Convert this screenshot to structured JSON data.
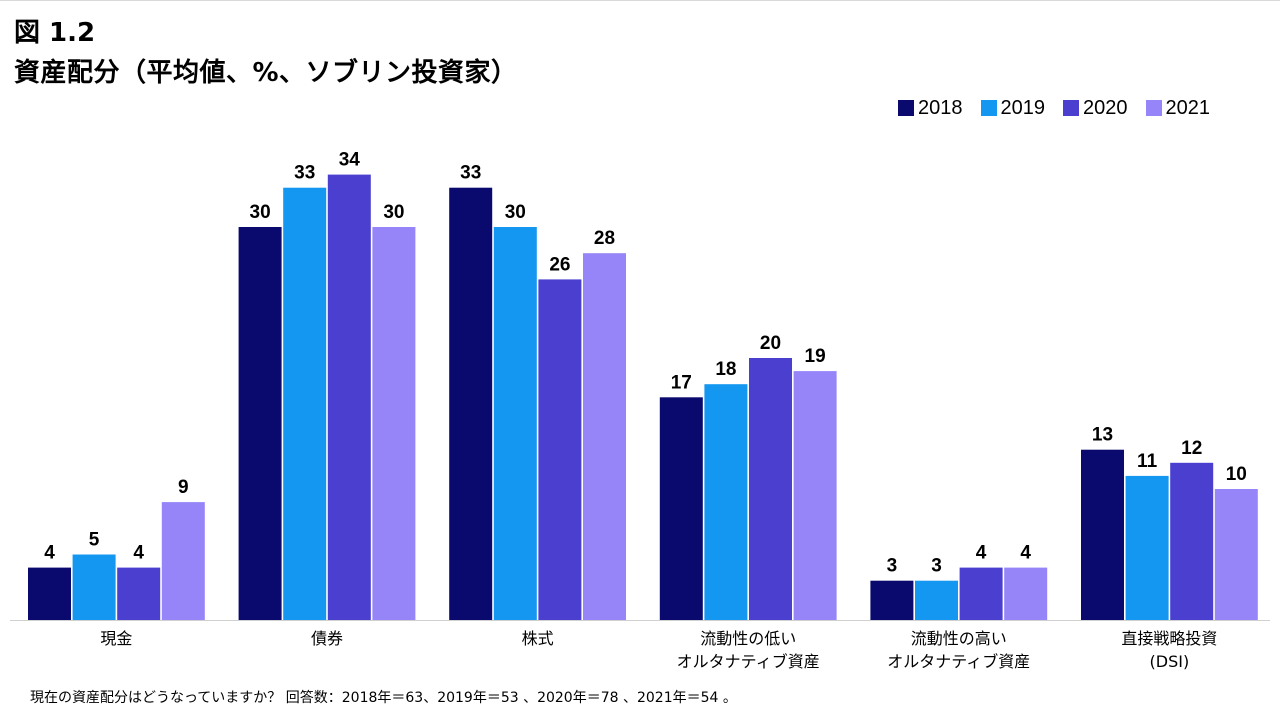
{
  "figure": {
    "label": "図 1.2",
    "title": "資産配分（平均値、%、ソブリン投資家）",
    "footnote": "現在の資産配分はどうなっていますか？ 回答数：2018年＝63、2019年＝53 、2020年＝78 、2021年＝54 。"
  },
  "chart_data": {
    "type": "bar",
    "title": "資産配分（平均値、%、ソブリン投資家）",
    "xlabel": "",
    "ylabel": "",
    "ylim": [
      0,
      40
    ],
    "grid": false,
    "legend_position": "top-right",
    "categories": [
      [
        "現金"
      ],
      [
        "債券"
      ],
      [
        "株式"
      ],
      [
        "流動性の低い",
        "オルタナティブ資産"
      ],
      [
        "流動性の高い",
        "オルタナティブ資産"
      ],
      [
        "直接戦略投資",
        "(DSI)"
      ]
    ],
    "series": [
      {
        "name": "2018",
        "color": "#0a0a6e",
        "values": [
          4,
          30,
          33,
          17,
          3,
          13
        ]
      },
      {
        "name": "2019",
        "color": "#1497f0",
        "values": [
          5,
          33,
          30,
          18,
          3,
          11
        ]
      },
      {
        "name": "2020",
        "color": "#4a3fcf",
        "values": [
          4,
          34,
          26,
          20,
          4,
          12
        ]
      },
      {
        "name": "2021",
        "color": "#9685f8",
        "values": [
          9,
          30,
          28,
          19,
          4,
          10
        ]
      }
    ]
  }
}
